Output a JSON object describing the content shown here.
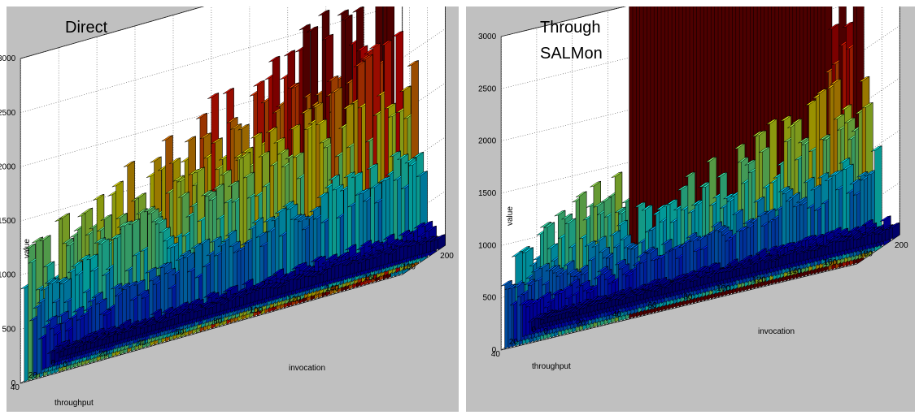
{
  "chart_data": [
    {
      "type": "bar3d",
      "title": "Direct",
      "title_lines": [
        "Direct"
      ],
      "xlabel": "invocation",
      "ylabel": "throughput",
      "zlabel": "value",
      "xlim": [
        0,
        200
      ],
      "ylim": [
        0,
        40
      ],
      "zlim": [
        0,
        3000
      ],
      "x_ticks": [
        "0",
        "20",
        "40",
        "60",
        "80",
        "100",
        "120",
        "140",
        "160",
        "180",
        "200"
      ],
      "y_ticks": [
        "0",
        "20",
        "40"
      ],
      "z_ticks": [
        "0",
        "500",
        "1000",
        "1500",
        "2000",
        "2500",
        "3000"
      ],
      "series": [
        {
          "throughput": 40,
          "invocation_start": 0,
          "invocation_end": 200,
          "value_start": 1000,
          "value_end": 2450,
          "tail_drop_at": 190
        },
        {
          "throughput": 30,
          "invocation_start": 0,
          "invocation_end": 200,
          "value_start": 650,
          "value_end": 1850
        },
        {
          "throughput": 20,
          "invocation_start": 0,
          "invocation_end": 200,
          "value_start": 350,
          "value_end": 950
        },
        {
          "throughput": 10,
          "invocation_start": 0,
          "invocation_end": 200,
          "value_start": 120,
          "value_end": 250
        },
        {
          "throughput": 0,
          "invocation_start": 0,
          "invocation_end": 200,
          "value_start": 60,
          "value_end": 120
        }
      ],
      "colormap": "jet",
      "grid": true
    },
    {
      "type": "bar3d",
      "title": "Through SALMon",
      "title_lines": [
        "Through",
        "SALMon"
      ],
      "xlabel": "invocation",
      "ylabel": "throughput",
      "zlabel": "value",
      "xlim": [
        0,
        200
      ],
      "ylim": [
        0,
        40
      ],
      "zlim": [
        0,
        3000
      ],
      "x_ticks": [
        "0",
        "20",
        "40",
        "60",
        "80",
        "100",
        "120",
        "140",
        "160",
        "180",
        "200"
      ],
      "y_ticks": [
        "0",
        "20",
        "40"
      ],
      "z_ticks": [
        "0",
        "500",
        "1000",
        "1500",
        "2000",
        "2500",
        "3000"
      ],
      "series": [
        {
          "throughput": 40,
          "invocation_start": 0,
          "invocation_end": 200,
          "value_start": 700,
          "value_end": 2300,
          "spike_from": 70,
          "spike_to": 180,
          "spike_value": 5000
        },
        {
          "throughput": 30,
          "invocation_start": 0,
          "invocation_end": 200,
          "value_start": 450,
          "value_end": 1500
        },
        {
          "throughput": 20,
          "invocation_start": 0,
          "invocation_end": 200,
          "value_start": 250,
          "value_end": 800
        },
        {
          "throughput": 10,
          "invocation_start": 0,
          "invocation_end": 200,
          "value_start": 100,
          "value_end": 220
        },
        {
          "throughput": 0,
          "invocation_start": 0,
          "invocation_end": 200,
          "value_start": 50,
          "value_end": 110
        }
      ],
      "colormap": "jet",
      "grid": true
    }
  ]
}
